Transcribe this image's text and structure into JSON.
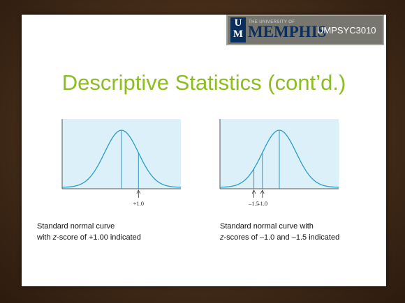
{
  "header": {
    "logo_letters": [
      "U",
      "M"
    ],
    "university_small": "THE UNIVERSITY OF",
    "university_name": "MEMPHIS",
    "course_code": "UMPSYC3010"
  },
  "slide": {
    "title": "Descriptive Statistics (cont’d.)"
  },
  "figures": [
    {
      "z_labels": [
        "+1.0"
      ],
      "z_values": [
        1.0
      ]
    },
    {
      "z_labels": [
        "–1.5",
        "–1.0"
      ],
      "z_values": [
        -1.5,
        -1.0
      ]
    }
  ],
  "captions": {
    "left": {
      "line1": "Standard normal curve",
      "line2_pre": "with ",
      "line2_italic": "z",
      "line2_post": "-score of +1.00 indicated"
    },
    "right": {
      "line1": "Standard normal curve with",
      "line2_italic": "z",
      "line2_post": "-scores of –1.0 and –1.5 indicated"
    }
  },
  "colors": {
    "title_green": "#8cbd1f",
    "panel_fill": "#dcf0f9",
    "curve_blue": "#2a9bc8",
    "logo_navy": "#0b2f5c",
    "frame_brown": "#442c19"
  }
}
